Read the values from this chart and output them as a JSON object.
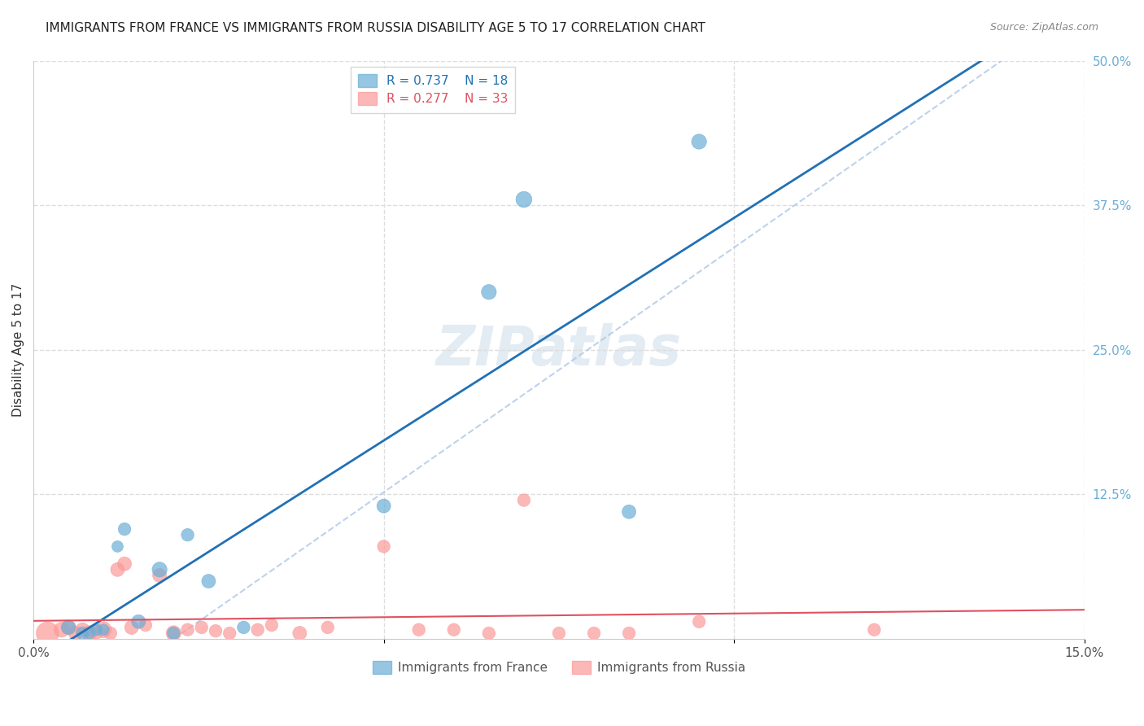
{
  "title": "IMMIGRANTS FROM FRANCE VS IMMIGRANTS FROM RUSSIA DISABILITY AGE 5 TO 17 CORRELATION CHART",
  "source": "Source: ZipAtlas.com",
  "ylabel": "Disability Age 5 to 17",
  "x_min": 0.0,
  "x_max": 0.15,
  "y_min": 0.0,
  "y_max": 0.5,
  "y_ticks_right": [
    0.5,
    0.375,
    0.25,
    0.125
  ],
  "y_tick_labels_right": [
    "50.0%",
    "37.5%",
    "25.0%",
    "12.5%"
  ],
  "france_color": "#6baed6",
  "russia_color": "#fb9a99",
  "france_line_color": "#2171b5",
  "russia_line_color": "#e05060",
  "dashed_line_color": "#aec7e8",
  "legend_france_label": "R = 0.737    N = 18",
  "legend_russia_label": "R = 0.277    N = 33",
  "bottom_legend_france": "Immigrants from France",
  "bottom_legend_russia": "Immigrants from Russia",
  "france_x": [
    0.005,
    0.007,
    0.008,
    0.009,
    0.01,
    0.012,
    0.013,
    0.015,
    0.018,
    0.02,
    0.022,
    0.025,
    0.03,
    0.05,
    0.065,
    0.07,
    0.085,
    0.095
  ],
  "france_y": [
    0.01,
    0.005,
    0.005,
    0.008,
    0.008,
    0.08,
    0.095,
    0.015,
    0.06,
    0.005,
    0.09,
    0.05,
    0.01,
    0.115,
    0.3,
    0.38,
    0.11,
    0.43
  ],
  "france_size": [
    30,
    25,
    20,
    20,
    20,
    20,
    25,
    30,
    35,
    25,
    25,
    30,
    25,
    30,
    35,
    40,
    30,
    35
  ],
  "russia_x": [
    0.002,
    0.004,
    0.005,
    0.006,
    0.007,
    0.008,
    0.009,
    0.01,
    0.011,
    0.012,
    0.013,
    0.014,
    0.016,
    0.018,
    0.02,
    0.022,
    0.024,
    0.026,
    0.028,
    0.032,
    0.034,
    0.038,
    0.042,
    0.05,
    0.055,
    0.06,
    0.065,
    0.07,
    0.075,
    0.08,
    0.085,
    0.095,
    0.12
  ],
  "russia_y": [
    0.005,
    0.008,
    0.01,
    0.005,
    0.008,
    0.005,
    0.006,
    0.008,
    0.005,
    0.06,
    0.065,
    0.01,
    0.012,
    0.055,
    0.005,
    0.008,
    0.01,
    0.007,
    0.005,
    0.008,
    0.012,
    0.005,
    0.01,
    0.08,
    0.008,
    0.008,
    0.005,
    0.12,
    0.005,
    0.005,
    0.005,
    0.015,
    0.008
  ],
  "russia_size": [
    80,
    35,
    35,
    30,
    30,
    35,
    30,
    40,
    25,
    30,
    30,
    30,
    25,
    30,
    35,
    25,
    25,
    25,
    25,
    25,
    25,
    30,
    25,
    25,
    25,
    25,
    25,
    25,
    25,
    25,
    25,
    25,
    25
  ],
  "watermark": "ZIPatlas",
  "background_color": "#ffffff",
  "grid_color": "#dddddd"
}
